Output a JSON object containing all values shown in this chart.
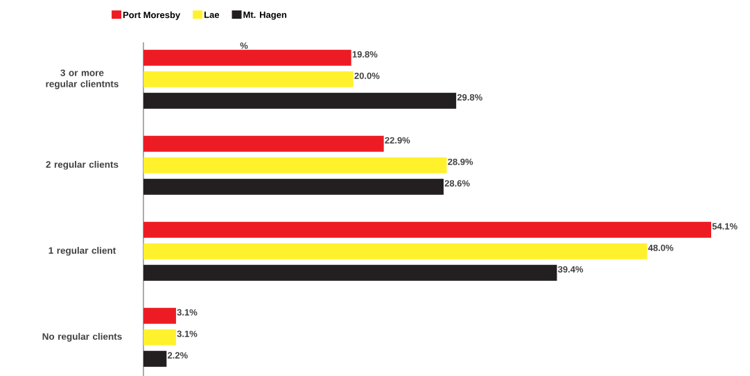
{
  "chart_data": {
    "type": "bar",
    "orientation": "horizontal",
    "categories": [
      "3 or more regular clientnts",
      "2 regular clients",
      "1 regular client",
      "No regular clients"
    ],
    "series": [
      {
        "name": "Port Moresby",
        "color": "#ed1c24",
        "values": [
          19.8,
          22.9,
          54.1,
          3.1
        ],
        "value_labels": [
          "19.8%",
          "22.9%",
          "54.1%",
          "3.1%"
        ]
      },
      {
        "name": "Lae",
        "color": "#fff22d",
        "values": [
          20.0,
          28.9,
          48.0,
          3.1
        ],
        "value_labels": [
          "20.0%",
          "28.9%",
          "48.0%",
          "3.1%"
        ]
      },
      {
        "name": "Mt. Hagen",
        "color": "#231f20",
        "values": [
          29.8,
          28.6,
          39.4,
          2.2
        ],
        "value_labels": [
          "29.8%",
          "28.6%",
          "39.4%",
          "2.2%"
        ]
      }
    ],
    "annotations": [
      "%"
    ],
    "legend": "top",
    "grid": false
  }
}
